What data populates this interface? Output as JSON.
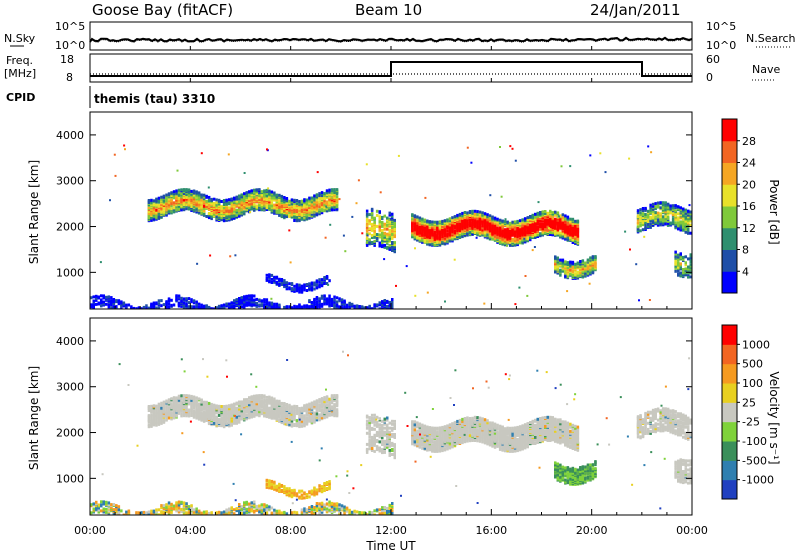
{
  "header": {
    "station": "Goose Bay (fitACF)",
    "beam": "Beam 10",
    "date": "24/Jan/2011"
  },
  "noise_panel": {
    "left_label": "N.Sky",
    "right_label": "N.Search",
    "ticks": [
      "10^5",
      "10^0"
    ],
    "right_ticks": [
      "10^5",
      "10^0"
    ]
  },
  "freq_panel": {
    "left_label_1": "Freq.",
    "left_label_2": "[MHz]",
    "left_ticks": [
      "18",
      "8"
    ],
    "right_label": "Nave",
    "right_ticks": [
      "60",
      "0"
    ]
  },
  "cpid": {
    "label": "CPID",
    "text": "themis (tau) 3310"
  },
  "chart_data": [
    {
      "type": "heatmap",
      "quantity": "Power",
      "ylabel": "Slant Range [km]",
      "ylim": [
        200,
        4500
      ],
      "yticks": [
        1000,
        2000,
        3000,
        4000
      ],
      "xlim": [
        0,
        24
      ],
      "colorbar": {
        "label": "Power [dB]",
        "ticks": [
          "28",
          "24",
          "20",
          "16",
          "12",
          "8",
          "4"
        ],
        "colors": [
          "#0000ff",
          "#1f4fa8",
          "#2f8f6f",
          "#7fc93a",
          "#e8e12a",
          "#f5a623",
          "#f26522",
          "#ff0000"
        ]
      }
    },
    {
      "type": "heatmap",
      "quantity": "Velocity",
      "ylabel": "Slant Range [km]",
      "ylim": [
        200,
        4500
      ],
      "yticks": [
        1000,
        2000,
        3000,
        4000
      ],
      "xlim": [
        0,
        24
      ],
      "xlabel": "Time UT",
      "xticks": [
        "00:00",
        "04:00",
        "08:00",
        "12:00",
        "16:00",
        "20:00",
        "00:00"
      ],
      "colorbar": {
        "label": "Velocity [m s⁻¹]",
        "ticks": [
          "1000",
          "500",
          "100",
          "25",
          "-25",
          "-100",
          "-500",
          "-1000"
        ],
        "colors": [
          "#2040c0",
          "#2f7fb0",
          "#3a8f5a",
          "#7fd23a",
          "#c8c8c0",
          "#e8d020",
          "#f59a20",
          "#f26522",
          "#ff0000"
        ]
      }
    }
  ]
}
